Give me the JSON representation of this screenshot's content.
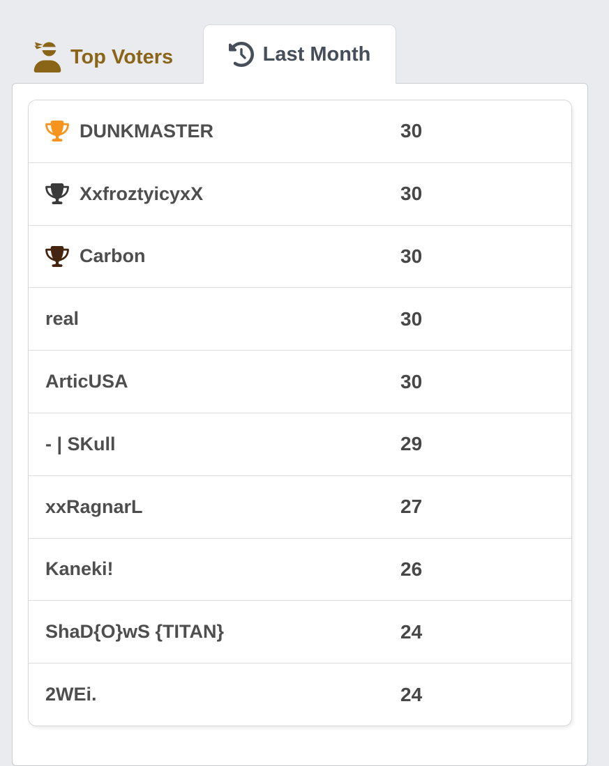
{
  "page": {
    "background_color": "#e9ebef",
    "panel_color": "#ffffff"
  },
  "tabs": [
    {
      "label": "Top Voters",
      "icon": "user-ninja-icon",
      "active": false,
      "text_color": "#8a6517"
    },
    {
      "label": "Last Month",
      "icon": "history-icon",
      "active": true,
      "text_color": "#454e59"
    }
  ],
  "leaderboard": {
    "rows": [
      {
        "rank": 1,
        "name": "DUNKMASTER",
        "votes": "30",
        "trophy": "gold",
        "trophy_color": "#f7941d"
      },
      {
        "rank": 2,
        "name": "XxfroztyicyxX",
        "votes": "30",
        "trophy": "silver",
        "trophy_color": "#3a3a3a"
      },
      {
        "rank": 3,
        "name": "Carbon",
        "votes": "30",
        "trophy": "bronze",
        "trophy_color": "#452410"
      },
      {
        "rank": 4,
        "name": "real",
        "votes": "30",
        "trophy": null,
        "trophy_color": null
      },
      {
        "rank": 5,
        "name": "ArticUSA",
        "votes": "30",
        "trophy": null,
        "trophy_color": null
      },
      {
        "rank": 6,
        "name": "- | SKull",
        "votes": "29",
        "trophy": null,
        "trophy_color": null
      },
      {
        "rank": 7,
        "name": "xxRagnarL",
        "votes": "27",
        "trophy": null,
        "trophy_color": null
      },
      {
        "rank": 8,
        "name": "Kaneki!",
        "votes": "26",
        "trophy": null,
        "trophy_color": null
      },
      {
        "rank": 9,
        "name": "ShaD{O}wS {TITAN}",
        "votes": "24",
        "trophy": null,
        "trophy_color": null
      },
      {
        "rank": 10,
        "name": "2WEi.",
        "votes": "24",
        "trophy": null,
        "trophy_color": null
      }
    ]
  }
}
